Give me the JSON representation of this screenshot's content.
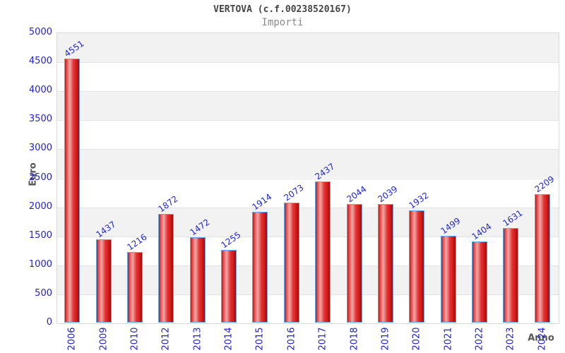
{
  "header": {
    "title": "VERTOVA (c.f.00238520167)",
    "subtitle": "Importi"
  },
  "chart_data": {
    "type": "bar",
    "title": "VERTOVA (c.f.00238520167)",
    "subtitle": "Importi",
    "categories": [
      "2006",
      "2009",
      "2010",
      "2012",
      "2013",
      "2014",
      "2015",
      "2016",
      "2017",
      "2018",
      "2019",
      "2020",
      "2021",
      "2022",
      "2023",
      "2024"
    ],
    "values": [
      4551,
      1437,
      1216,
      1872,
      1472,
      1255,
      1914,
      2073,
      2437,
      2044,
      2039,
      1932,
      1499,
      1404,
      1631,
      2209
    ],
    "xlabel": "Anno",
    "ylabel": "Euro",
    "ylim": [
      0,
      5000
    ],
    "ytick_step": 500,
    "ytick_labels": [
      "0",
      "500",
      "1000",
      "1500",
      "2000",
      "2500",
      "3000",
      "3500",
      "4000",
      "4500",
      "5000"
    ],
    "grid": "alternating-horizontal-bands",
    "legend": "none",
    "colors": {
      "bar_border": "#64a8e8",
      "bar_fill_dark": "#b71c1c",
      "bar_fill_light": "#f2a2a2",
      "tick_label": "#2222cc",
      "value_label": "#2228cc",
      "band_gray": "#f2f2f2",
      "band_white": "#ffffff",
      "plot_border": "#d9d9d9",
      "axis_title": "#555555",
      "title": "#454545",
      "subtitle": "#8a8a8a"
    }
  }
}
